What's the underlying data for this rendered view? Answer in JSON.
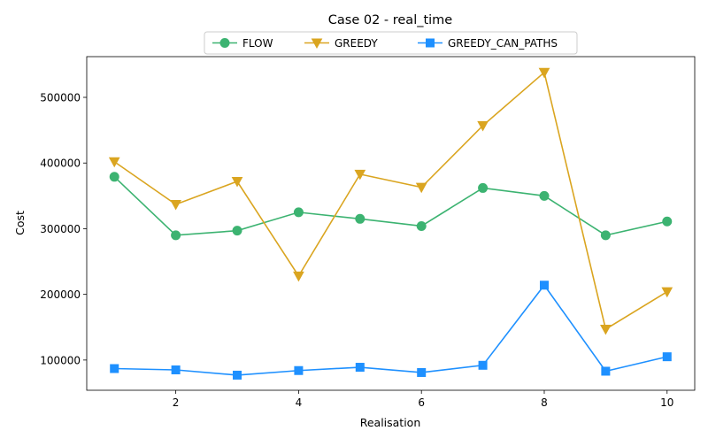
{
  "chart_data": {
    "type": "line",
    "title": "Case 02 - real_time",
    "xlabel": "Realisation",
    "ylabel": "Cost",
    "x": [
      1,
      2,
      3,
      4,
      5,
      6,
      7,
      8,
      9,
      10
    ],
    "xlim": [
      0.55,
      10.45
    ],
    "ylim": [
      54000,
      562000
    ],
    "xticks": [
      2,
      4,
      6,
      8,
      10
    ],
    "yticks": [
      100000,
      200000,
      300000,
      400000,
      500000
    ],
    "grid": false,
    "legend_position": "top-center",
    "series": [
      {
        "name": "FLOW",
        "color": "#3cb371",
        "marker": "circle",
        "values": [
          379000,
          290000,
          297000,
          325000,
          315000,
          304000,
          362000,
          350000,
          290000,
          311000
        ]
      },
      {
        "name": "GREEDY",
        "color": "#daa520",
        "marker": "triangle-down",
        "values": [
          402000,
          337000,
          372000,
          228000,
          383000,
          363000,
          457000,
          538000,
          147000,
          204000
        ]
      },
      {
        "name": "GREEDY_CAN_PATHS",
        "color": "#1e90ff",
        "marker": "square",
        "values": [
          87000,
          85000,
          77000,
          84000,
          89000,
          81000,
          92000,
          214000,
          83000,
          105000
        ]
      }
    ]
  }
}
